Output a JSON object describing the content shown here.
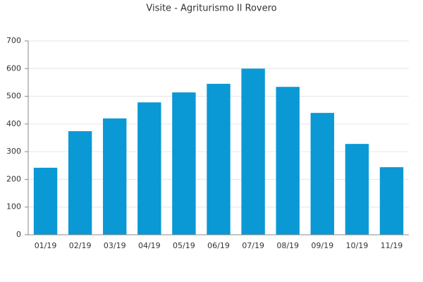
{
  "chart_data": {
    "type": "bar",
    "title": "Visite - Agriturismo Il Rovero",
    "categories": [
      "01/19",
      "02/19",
      "03/19",
      "04/19",
      "05/19",
      "06/19",
      "07/19",
      "08/19",
      "09/19",
      "10/19",
      "11/19"
    ],
    "values": [
      242,
      374,
      420,
      478,
      514,
      545,
      600,
      534,
      440,
      328,
      244
    ],
    "color": "#0a99d4",
    "ylim": [
      0,
      700
    ],
    "yticks": [
      0,
      100,
      200,
      300,
      400,
      500,
      600,
      700
    ],
    "grid": true
  }
}
